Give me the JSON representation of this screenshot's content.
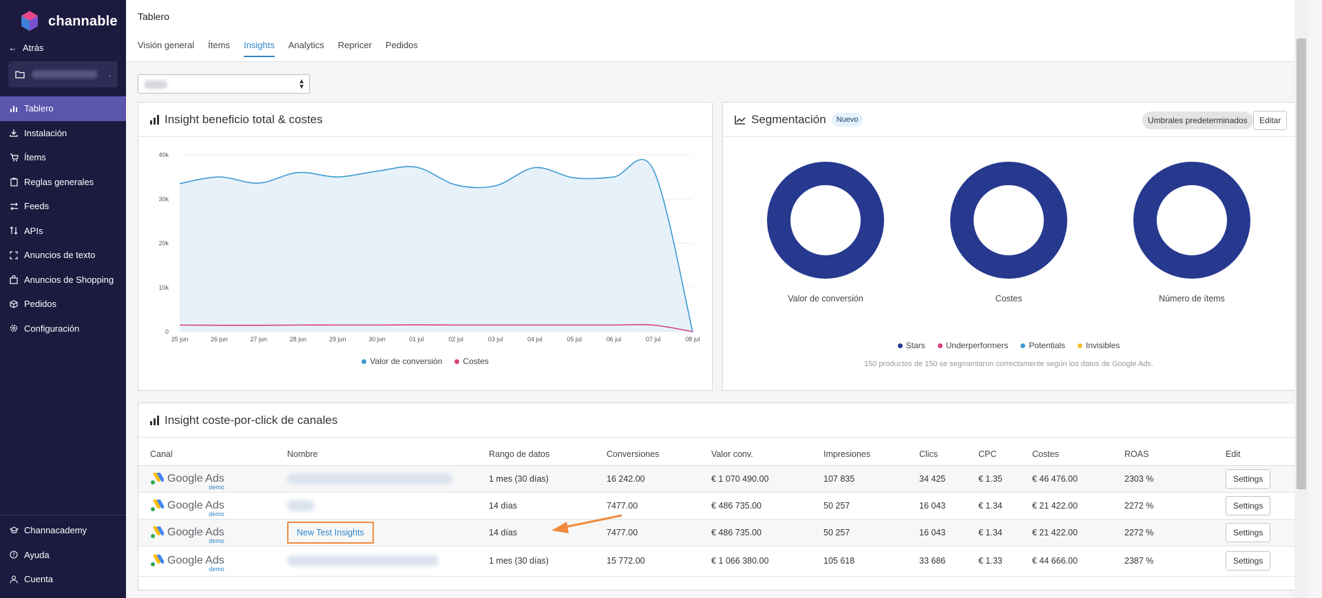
{
  "app": {
    "name": "channable"
  },
  "sidebar": {
    "back_label": "Atrás",
    "items": [
      {
        "label": "Tablero",
        "icon": "bar-chart-icon",
        "active": true
      },
      {
        "label": "Instalación",
        "icon": "download-icon"
      },
      {
        "label": "Ítems",
        "icon": "cart-icon"
      },
      {
        "label": "Reglas generales",
        "icon": "clipboard-icon"
      },
      {
        "label": "Feeds",
        "icon": "arrows-icon"
      },
      {
        "label": "APIs",
        "icon": "sort-arrows-icon"
      },
      {
        "label": "Anuncios de texto",
        "icon": "frame-icon"
      },
      {
        "label": "Anuncios de Shopping",
        "icon": "bag-icon"
      },
      {
        "label": "Pedidos",
        "icon": "box-icon"
      },
      {
        "label": "Configuración",
        "icon": "gear-icon"
      }
    ],
    "bottom_items": [
      {
        "label": "Channacademy",
        "icon": "graduation-icon"
      },
      {
        "label": "Ayuda",
        "icon": "help-icon"
      },
      {
        "label": "Cuenta",
        "icon": "user-icon"
      }
    ]
  },
  "header": {
    "title": "Tablero",
    "tabs": [
      {
        "label": "Visión general"
      },
      {
        "label": "Ítems"
      },
      {
        "label": "Insights",
        "active": true
      },
      {
        "label": "Analytics"
      },
      {
        "label": "Repricer"
      },
      {
        "label": "Pedidos"
      }
    ]
  },
  "profit_card": {
    "title": "Insight beneficio total & costes"
  },
  "chart_data": {
    "type": "line",
    "x": [
      "25 jun",
      "26 jun",
      "27 jun",
      "28 jun",
      "29 jun",
      "30 jun",
      "01 jul",
      "02 jul",
      "03 jul",
      "04 jul",
      "05 jul",
      "06 jul",
      "07 jul",
      "08 jul"
    ],
    "series": [
      {
        "name": "Valor de conversión",
        "color": "#3d9ad1",
        "values": [
          33500,
          35000,
          33600,
          36000,
          35000,
          36300,
          37200,
          33200,
          33000,
          37100,
          34800,
          35000,
          36700,
          0
        ]
      },
      {
        "name": "Costes",
        "color": "#d6407e",
        "values": [
          1500,
          1450,
          1450,
          1500,
          1500,
          1500,
          1550,
          1500,
          1500,
          1500,
          1500,
          1500,
          1500,
          0
        ]
      }
    ],
    "yticks": [
      "0",
      "10k",
      "20k",
      "30k",
      "40k"
    ],
    "ylim": [
      0,
      40000
    ],
    "grid": true,
    "legend": "bottom"
  },
  "segmentation": {
    "title": "Segmentación",
    "badge": "Nuevo",
    "thresholds_button": "Umbrales predeterminados",
    "edit_button": "Editar",
    "donuts": [
      {
        "label": "Valor de conversión"
      },
      {
        "label": "Costes"
      },
      {
        "label": "Número de ítems"
      }
    ],
    "donut_color": "#26398f",
    "legend": [
      {
        "label": "Stars",
        "color": "#26398f"
      },
      {
        "label": "Underperformers",
        "color": "#d6407e"
      },
      {
        "label": "Potentials",
        "color": "#3d9ad1"
      },
      {
        "label": "Invisibles",
        "color": "#f2c12e"
      }
    ],
    "note": "150 productos de 150 se segmentaron correctamente según los datos de Google Ads."
  },
  "cpc_card": {
    "title": "Insight coste-por-click de canales",
    "columns": [
      "Canal",
      "Nombre",
      "Rango de datos",
      "Conversiones",
      "Valor conv.",
      "Impresiones",
      "Clics",
      "CPC",
      "Costes",
      "ROAS",
      "Edit"
    ],
    "channel_text": "Google Ads",
    "channel_sub": "demo",
    "settings_label": "Settings",
    "rows": [
      {
        "name": "",
        "range": "1 mes (30 días)",
        "conversions": "16 242.00",
        "value": "€ 1 070 490.00",
        "impressions": "107 835",
        "clicks": "34 425",
        "cpc": "€ 1.35",
        "costs": "€ 46 476.00",
        "roas": "2303 %"
      },
      {
        "name": "",
        "range": "14 días",
        "conversions": "7477.00",
        "value": "€ 486 735.00",
        "impressions": "50 257",
        "clicks": "16 043",
        "cpc": "€ 1.34",
        "costs": "€ 21 422.00",
        "roas": "2272 %"
      },
      {
        "name": "New Test Insights",
        "range": "14 días",
        "conversions": "7477.00",
        "value": "€ 486 735.00",
        "impressions": "50 257",
        "clicks": "16 043",
        "cpc": "€ 1.34",
        "costs": "€ 21 422.00",
        "roas": "2272 %"
      },
      {
        "name": "",
        "range": "1 mes (30 días)",
        "conversions": "15 772.00",
        "value": "€ 1 066 380.00",
        "impressions": "105 618",
        "clicks": "33 686",
        "cpc": "€ 1.33",
        "costs": "€ 44 666.00",
        "roas": "2387 %"
      }
    ]
  }
}
